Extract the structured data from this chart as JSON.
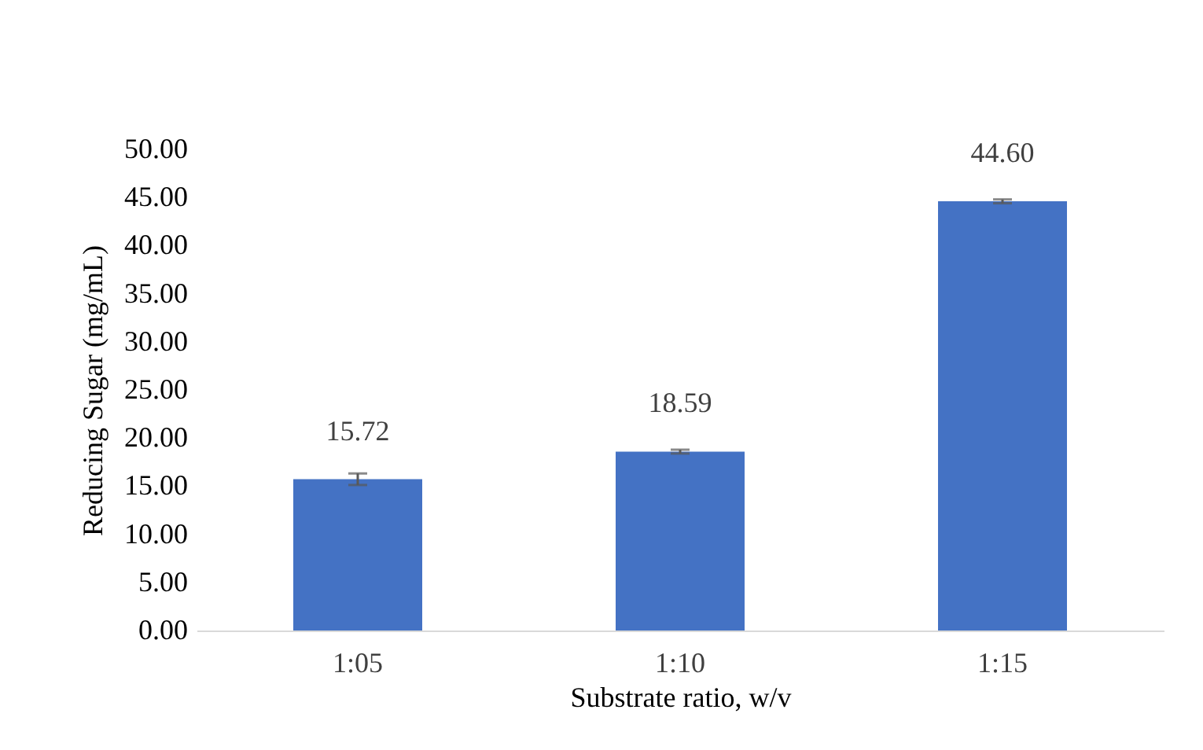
{
  "chart_data": {
    "type": "bar",
    "xlabel": "Substrate ratio, w/v",
    "ylabel": "Reducing Sugar (mg/mL)",
    "categories": [
      "1:05",
      "1:10",
      "1:15"
    ],
    "values": [
      15.72,
      18.59,
      44.6
    ],
    "value_labels": [
      "15.72",
      "18.59",
      "44.60"
    ],
    "errors": [
      0.6,
      0.2,
      0.2
    ],
    "color": "#4472c4",
    "ylim": [
      0,
      50
    ],
    "yticks": [
      {
        "value": 0,
        "label": "0.00"
      },
      {
        "value": 5,
        "label": "5.00"
      },
      {
        "value": 10,
        "label": "10.00"
      },
      {
        "value": 15,
        "label": "15.00"
      },
      {
        "value": 20,
        "label": "20.00"
      },
      {
        "value": 25,
        "label": "25.00"
      },
      {
        "value": 30,
        "label": "30.00"
      },
      {
        "value": 35,
        "label": "35.00"
      },
      {
        "value": 40,
        "label": "40.00"
      },
      {
        "value": 45,
        "label": "45.00"
      },
      {
        "value": 50,
        "label": "50.00"
      }
    ],
    "grid": false
  }
}
